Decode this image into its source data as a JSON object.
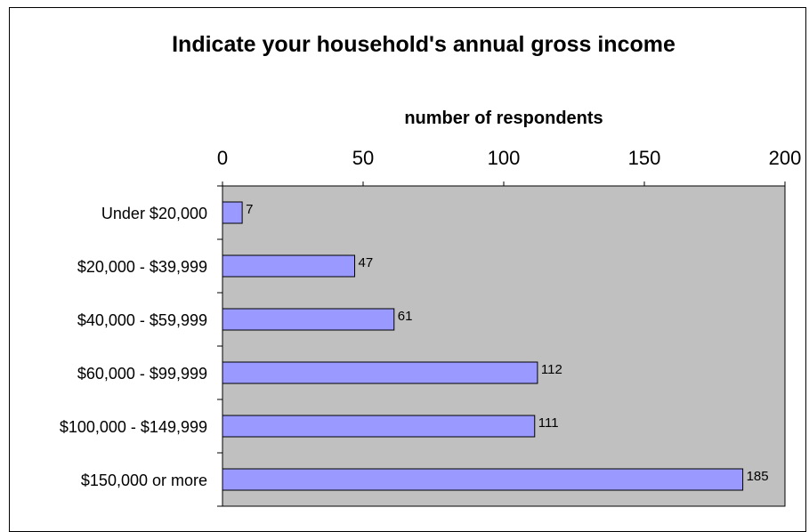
{
  "chart_data": {
    "type": "bar",
    "orientation": "horizontal",
    "title": "Indicate your household's annual gross income",
    "xlabel": "number of respondents",
    "ylabel": "",
    "xlim": [
      0,
      200
    ],
    "x_ticks": [
      0,
      50,
      100,
      150,
      200
    ],
    "x_axis_position": "top",
    "categories": [
      "Under $20,000",
      "$20,000 - $39,999",
      "$40,000 - $59,999",
      "$60,000 - $99,999",
      "$100,000 - $149,999",
      "$150,000 or more"
    ],
    "values": [
      7,
      47,
      61,
      112,
      111,
      185
    ],
    "data_labels": true,
    "grid": false,
    "colors": {
      "bar_fill": "#9999ff",
      "bar_stroke": "#000000",
      "plot_background": "#c0c0c0"
    }
  }
}
